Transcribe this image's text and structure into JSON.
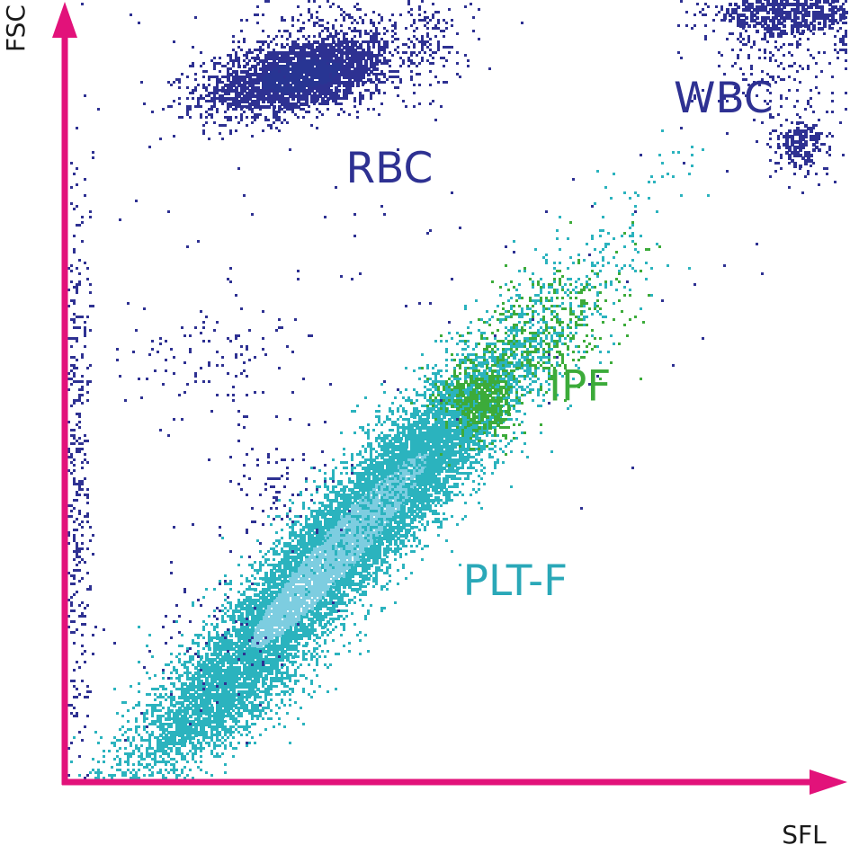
{
  "chart_data": {
    "type": "scatter",
    "title": "",
    "xlabel": "SFL",
    "ylabel": "FSC",
    "grid": false,
    "legend": "none",
    "xlim": [
      0,
      100
    ],
    "ylim": [
      0,
      100
    ],
    "axis_color": "#e2127a",
    "series": [
      {
        "name": "RBC",
        "color": "#2e3192",
        "core_color": "#283593",
        "label_color": "#2e3192",
        "label_at": [
          36,
          77
        ],
        "regions": [
          {
            "center": [
              30,
              91
            ],
            "spread": [
              6.5,
              2.4
            ],
            "angle": 12,
            "count": 2300,
            "weight": "dense"
          },
          {
            "center": [
              34,
              97
            ],
            "spread": [
              8,
              4
            ],
            "angle": 0,
            "count": 260,
            "weight": "sparse"
          },
          {
            "center": [
              46,
              95
            ],
            "spread": [
              2.5,
              4
            ],
            "angle": 0,
            "count": 120,
            "weight": "sparse"
          }
        ]
      },
      {
        "name": "WBC",
        "color": "#2e3192",
        "core_color": "#2e3192",
        "label_color": "#2e3192",
        "label_at": [
          78,
          86
        ],
        "regions": [
          {
            "center": [
              92,
              99
            ],
            "spread": [
              5,
              1.6
            ],
            "angle": 0,
            "count": 520,
            "weight": "dense"
          },
          {
            "center": [
              94,
              82
            ],
            "spread": [
              1.6,
              1.8
            ],
            "angle": 30,
            "count": 170,
            "weight": "dense"
          },
          {
            "center": [
              91,
              92
            ],
            "spread": [
              5,
              5
            ],
            "angle": 0,
            "count": 220,
            "weight": "sparse"
          },
          {
            "center": [
              100,
              96
            ],
            "spread": [
              0.5,
              4
            ],
            "angle": 0,
            "count": 60,
            "weight": "sparse"
          }
        ]
      },
      {
        "name": "PLT-F",
        "color": "#2bb3be",
        "core_color": "#7dcde0",
        "label_color": "#2aa8b8",
        "label_at": [
          51,
          24
        ],
        "regions": [
          {
            "center": [
              35,
              30
            ],
            "spread": [
              21,
              3.2
            ],
            "angle": 48,
            "count": 9000,
            "weight": "dense"
          },
          {
            "center": [
              20,
              9
            ],
            "spread": [
              6,
              2.2
            ],
            "angle": 25,
            "count": 500,
            "weight": "sparse"
          },
          {
            "center": [
              44,
              41
            ],
            "spread": [
              9,
              3
            ],
            "angle": 48,
            "count": 900,
            "weight": "sparse"
          }
        ]
      },
      {
        "name": "IPF",
        "color": "#3cab3a",
        "core_color": "#3cab3a",
        "label_color": "#3cab3a",
        "label_at": [
          62,
          49
        ],
        "regions": [
          {
            "center": [
              53,
              49
            ],
            "spread": [
              2.2,
              2.5
            ],
            "angle": 40,
            "count": 320,
            "weight": "dense"
          },
          {
            "center": [
              60,
              57
            ],
            "spread": [
              7,
              3.5
            ],
            "angle": 40,
            "count": 420,
            "weight": "sparse"
          }
        ]
      },
      {
        "name": "",
        "color": "#2e3192",
        "core_color": "#2e3192",
        "label_color": "#2e3192",
        "label_at": null,
        "regions": [
          {
            "center": [
              1.5,
              40
            ],
            "spread": [
              0.9,
              20
            ],
            "angle": 0,
            "count": 380,
            "weight": "sparse"
          },
          {
            "center": [
              19,
              55
            ],
            "spread": [
              6,
              4
            ],
            "angle": 0,
            "count": 110,
            "weight": "sparse"
          },
          {
            "center": [
              28,
              38
            ],
            "spread": [
              4,
              4
            ],
            "angle": 0,
            "count": 90,
            "weight": "sparse"
          },
          {
            "center": [
              20,
              20
            ],
            "spread": [
              7,
              6
            ],
            "angle": 0,
            "count": 80,
            "weight": "sparse"
          },
          {
            "center": [
              45,
              65
            ],
            "spread": [
              28,
              10
            ],
            "angle": 0,
            "count": 70,
            "weight": "sparse"
          }
        ]
      }
    ]
  }
}
